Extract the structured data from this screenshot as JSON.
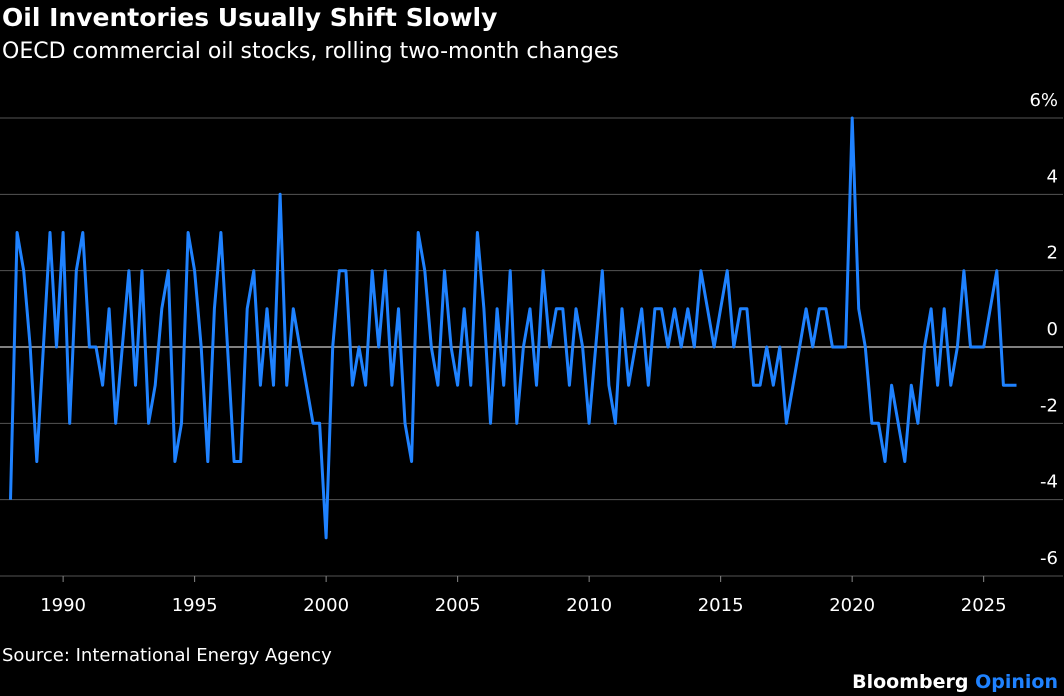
{
  "chart_data": {
    "type": "line",
    "title": "Oil Inventories Usually Shift Slowly",
    "subtitle": "OECD commercial oil stocks, rolling two-month changes",
    "source": "Source: International Energy Agency",
    "brand": "Bloomberg",
    "brand_section": "Opinion",
    "x": [
      1988,
      1988.25,
      1988.5,
      1988.75,
      1989,
      1989.25,
      1989.5,
      1989.75,
      1990,
      1990.25,
      1990.5,
      1990.75,
      1991,
      1991.25,
      1991.5,
      1991.75,
      1992,
      1992.25,
      1992.5,
      1992.75,
      1993,
      1993.25,
      1993.5,
      1993.75,
      1994,
      1994.25,
      1994.5,
      1994.75,
      1995,
      1995.25,
      1995.5,
      1995.75,
      1996,
      1996.25,
      1996.5,
      1996.75,
      1997,
      1997.25,
      1997.5,
      1997.75,
      1998,
      1998.25,
      1998.5,
      1998.75,
      1999,
      1999.25,
      1999.5,
      1999.75,
      2000,
      2000.25,
      2000.5,
      2000.75,
      2001,
      2001.25,
      2001.5,
      2001.75,
      2002,
      2002.25,
      2002.5,
      2002.75,
      2003,
      2003.25,
      2003.5,
      2003.75,
      2004,
      2004.25,
      2004.5,
      2004.75,
      2005,
      2005.25,
      2005.5,
      2005.75,
      2006,
      2006.25,
      2006.5,
      2006.75,
      2007,
      2007.25,
      2007.5,
      2007.75,
      2008,
      2008.25,
      2008.5,
      2008.75,
      2009,
      2009.25,
      2009.5,
      2009.75,
      2010,
      2010.25,
      2010.5,
      2010.75,
      2011,
      2011.25,
      2011.5,
      2011.75,
      2012,
      2012.25,
      2012.5,
      2012.75,
      2013,
      2013.25,
      2013.5,
      2013.75,
      2014,
      2014.25,
      2014.5,
      2014.75,
      2015,
      2015.25,
      2015.5,
      2015.75,
      2016,
      2016.25,
      2016.5,
      2016.75,
      2017,
      2017.25,
      2017.5,
      2017.75,
      2018,
      2018.25,
      2018.5,
      2018.75,
      2019,
      2019.25,
      2019.5,
      2019.75,
      2020,
      2020.25,
      2020.5,
      2020.75,
      2021,
      2021.25,
      2021.5,
      2021.75,
      2022,
      2022.25,
      2022.5,
      2022.75,
      2023,
      2023.25,
      2023.5,
      2023.75,
      2024,
      2024.25,
      2024.5,
      2024.75,
      2025,
      2025.25,
      2025.5,
      2025.75,
      2026,
      2026.25
    ],
    "series": [
      {
        "color": "#1f82ff",
        "values": [
          -4,
          3,
          2,
          0,
          -3,
          0,
          3,
          0,
          3,
          -2,
          2,
          3,
          0,
          0,
          -1,
          1,
          -2,
          0,
          2,
          -1,
          2,
          -2,
          -1,
          1,
          2,
          -3,
          -2,
          3,
          2,
          0,
          -3,
          1,
          3,
          0,
          -3,
          -3,
          1,
          2,
          -1,
          1,
          -1,
          4,
          -1,
          1,
          0,
          -1,
          -2,
          -2,
          -5,
          0,
          2,
          2,
          -1,
          0,
          -1,
          2,
          0,
          2,
          -1,
          1,
          -2,
          -3,
          3,
          2,
          0,
          -1,
          2,
          0,
          -1,
          1,
          -1,
          3,
          1,
          -2,
          1,
          -1,
          2,
          -2,
          0,
          1,
          -1,
          2,
          0,
          1,
          1,
          -1,
          1,
          0,
          -2,
          0,
          2,
          -1,
          -2,
          1,
          -1,
          0,
          1,
          -1,
          1,
          1,
          0,
          1,
          0,
          1,
          0,
          2,
          1,
          0,
          1,
          2,
          0,
          1,
          1,
          -1,
          -1,
          0,
          -1,
          0,
          -2,
          -1,
          0,
          1,
          0,
          1,
          1,
          0,
          0,
          0,
          6,
          1,
          0,
          -2,
          -2,
          -3,
          -1,
          -2,
          -3,
          -1,
          -2,
          0,
          1,
          -1,
          1,
          -1,
          0,
          2,
          0,
          0,
          0,
          1,
          2,
          -1,
          -1,
          -1
        ]
      }
    ],
    "xlim": [
      1987.6,
      2026.8
    ],
    "ylim": [
      -6,
      6
    ],
    "xticks": [
      1990,
      1995,
      2000,
      2005,
      2010,
      2015,
      2020,
      2025
    ],
    "yticks": [
      -6,
      -4,
      -2,
      0,
      2,
      4,
      {
        "value": 6,
        "label": "6%"
      }
    ],
    "grid": true
  }
}
